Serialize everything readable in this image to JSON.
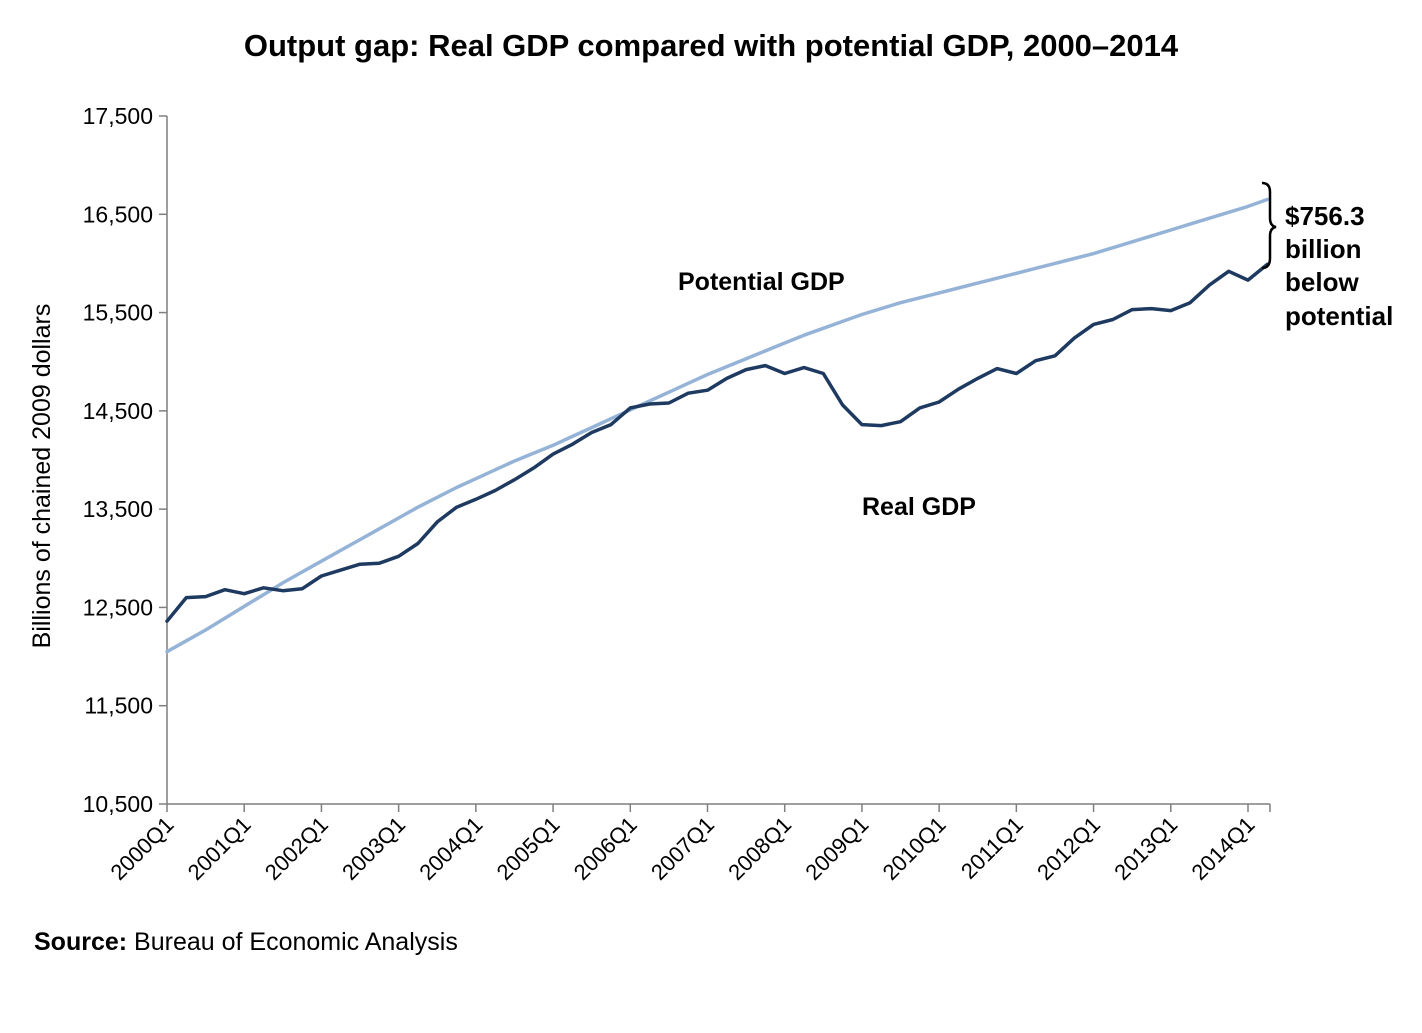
{
  "chart_data": {
    "type": "line",
    "title": "Output gap: Real GDP compared with potential GDP, 2000–2014",
    "ylabel": "Billions of chained 2009 dollars",
    "xlabel": "",
    "ylim": [
      10500,
      17500
    ],
    "yticks": [
      10500,
      11500,
      12500,
      13500,
      14500,
      15500,
      16500,
      17500
    ],
    "ytick_labels": [
      "10,500",
      "11,500",
      "12,500",
      "13,500",
      "14,500",
      "15,500",
      "16,500",
      "17,500"
    ],
    "xtick_labels": [
      "2000Q1",
      "2001Q1",
      "2002Q1",
      "2003Q1",
      "2004Q1",
      "2005Q1",
      "2006Q1",
      "2007Q1",
      "2008Q1",
      "2009Q1",
      "2010Q1",
      "2011Q1",
      "2012Q1",
      "2013Q1",
      "2014Q1"
    ],
    "x": [
      "2000Q1",
      "2000Q2",
      "2000Q3",
      "2000Q4",
      "2001Q1",
      "2001Q2",
      "2001Q3",
      "2001Q4",
      "2002Q1",
      "2002Q2",
      "2002Q3",
      "2002Q4",
      "2003Q1",
      "2003Q2",
      "2003Q3",
      "2003Q4",
      "2004Q1",
      "2004Q2",
      "2004Q3",
      "2004Q4",
      "2005Q1",
      "2005Q2",
      "2005Q3",
      "2005Q4",
      "2006Q1",
      "2006Q2",
      "2006Q3",
      "2006Q4",
      "2007Q1",
      "2007Q2",
      "2007Q3",
      "2007Q4",
      "2008Q1",
      "2008Q2",
      "2008Q3",
      "2008Q4",
      "2009Q1",
      "2009Q2",
      "2009Q3",
      "2009Q4",
      "2010Q1",
      "2010Q2",
      "2010Q3",
      "2010Q4",
      "2011Q1",
      "2011Q2",
      "2011Q3",
      "2011Q4",
      "2012Q1",
      "2012Q2",
      "2012Q3",
      "2012Q4",
      "2013Q1",
      "2013Q2",
      "2013Q3",
      "2013Q4",
      "2014Q1",
      "2014Q2"
    ],
    "series": [
      {
        "name": "Potential GDP",
        "color": "#95b3d7",
        "values": [
          12050,
          12160,
          12270,
          12390,
          12510,
          12630,
          12750,
          12860,
          12970,
          13080,
          13190,
          13300,
          13410,
          13520,
          13620,
          13720,
          13810,
          13900,
          13990,
          14070,
          14150,
          14240,
          14330,
          14420,
          14510,
          14600,
          14690,
          14780,
          14870,
          14950,
          15030,
          15110,
          15190,
          15270,
          15340,
          15410,
          15480,
          15540,
          15600,
          15650,
          15700,
          15750,
          15800,
          15850,
          15900,
          15950,
          16000,
          16050,
          16100,
          16160,
          16220,
          16280,
          16340,
          16400,
          16460,
          16520,
          16580,
          16650
        ]
      },
      {
        "name": "Real GDP",
        "color": "#1f3a60",
        "values": [
          12360,
          12600,
          12610,
          12680,
          12640,
          12700,
          12670,
          12690,
          12820,
          12880,
          12940,
          12950,
          13020,
          13150,
          13370,
          13520,
          13600,
          13690,
          13800,
          13920,
          14060,
          14160,
          14280,
          14360,
          14530,
          14570,
          14580,
          14680,
          14710,
          14830,
          14920,
          14960,
          14880,
          14940,
          14880,
          14560,
          14360,
          14350,
          14390,
          14530,
          14590,
          14720,
          14830,
          14930,
          14880,
          15010,
          15060,
          15240,
          15380,
          15430,
          15530,
          15540,
          15520,
          15600,
          15780,
          15920,
          15830,
          15990
        ]
      }
    ],
    "annotations": [
      "Potential GDP",
      "Real GDP",
      "$756.3",
      "billion",
      "below",
      "potential"
    ],
    "gap_annotation": {
      "lines": [
        "$756.3",
        "billion",
        "below",
        "potential"
      ]
    },
    "grid": false,
    "legend": "none"
  },
  "source": {
    "label": "Source:",
    "text": " Bureau of Economic Analysis"
  }
}
